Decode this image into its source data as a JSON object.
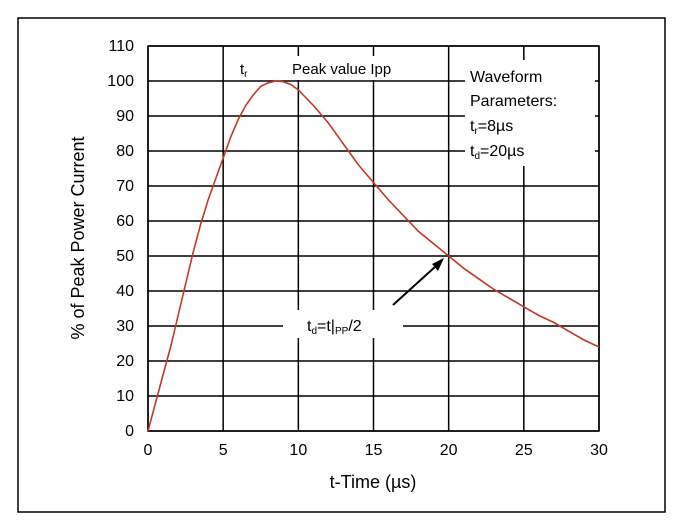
{
  "chart_data": {
    "type": "line",
    "xlabel": "t-Time (µs)",
    "ylabel": "% of Peak Power Current",
    "xlim": [
      0,
      30
    ],
    "ylim": [
      0,
      110
    ],
    "xticks": [
      0,
      5,
      10,
      15,
      20,
      25,
      30
    ],
    "yticks": [
      0,
      10,
      20,
      30,
      40,
      50,
      60,
      70,
      80,
      90,
      100,
      110
    ],
    "grid": true,
    "line_color": "#c0392b",
    "series": [
      {
        "x": [
          0,
          0.5,
          1,
          1.5,
          2,
          2.5,
          3,
          3.5,
          4,
          4.5,
          5,
          5.5,
          6,
          6.5,
          7,
          7.5,
          8,
          8.5,
          9,
          9.5,
          10,
          11,
          12,
          13,
          14,
          15,
          16,
          17,
          18,
          19,
          20,
          21,
          22,
          23,
          24,
          25,
          26,
          27,
          28,
          29,
          30
        ],
        "y": [
          0,
          8,
          16,
          24,
          33,
          42,
          51,
          59,
          66,
          72,
          78,
          84,
          89,
          93,
          96,
          98.5,
          99.5,
          100,
          99.8,
          99,
          97.5,
          93,
          88,
          82,
          76,
          71,
          66,
          61.5,
          57,
          53.5,
          50,
          46.5,
          43.5,
          40.5,
          38,
          35.5,
          33,
          31,
          28.5,
          26,
          24
        ]
      }
    ],
    "annotations": {
      "tr_main": "t",
      "tr_sub": "r",
      "peak_label": "Peak value Ipp",
      "params_title_1": "Waveform",
      "params_title_2": "Parameters:",
      "param1_main": "t",
      "param1_sub": "r",
      "param1_rest": "=8µs",
      "param2_main": "t",
      "param2_sub": "d",
      "param2_rest": "=20µs",
      "td_main": "t",
      "td_sub1": "d",
      "td_mid": "=t|",
      "td_sub2": "PP",
      "td_rest": "/2"
    }
  }
}
